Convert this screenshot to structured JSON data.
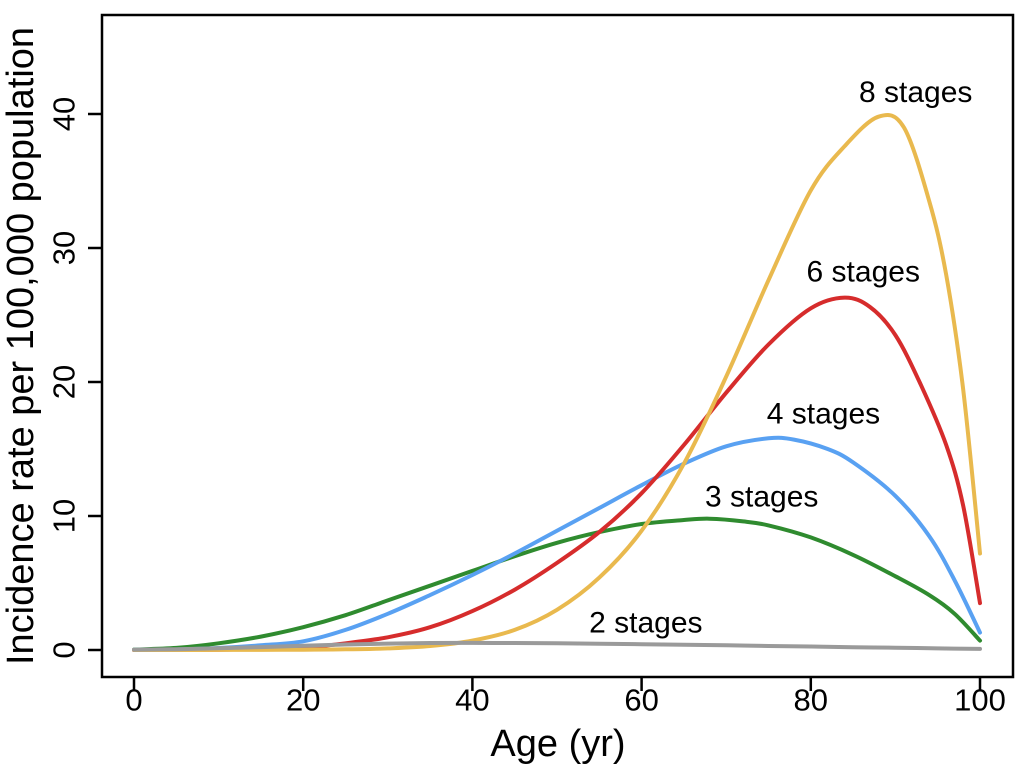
{
  "figure": {
    "background": "#ffffff",
    "axis_color": "#000000",
    "text_color": "#000000"
  },
  "chart_data": {
    "type": "line",
    "title": "",
    "xlabel": "Age (yr)",
    "ylabel": "Incidence rate per 100,000 population",
    "xlim": [
      0,
      100
    ],
    "ylim": [
      0,
      40
    ],
    "x_ticks": [
      0,
      20,
      40,
      60,
      80,
      100
    ],
    "y_ticks": [
      0,
      10,
      20,
      30,
      40
    ],
    "grid": false,
    "legend_position": "inline-labels",
    "series": [
      {
        "name": "3 stages",
        "color": "#2F8B2F",
        "peak": {
          "age": 67,
          "value": 9.8
        },
        "label_at": {
          "age": 74.2,
          "value": 11.4
        },
        "points": [
          [
            0,
            0.03
          ],
          [
            5,
            0.16
          ],
          [
            10,
            0.5
          ],
          [
            15,
            1.0
          ],
          [
            20,
            1.7
          ],
          [
            25,
            2.6
          ],
          [
            30,
            3.7
          ],
          [
            35,
            4.8
          ],
          [
            40,
            5.9
          ],
          [
            45,
            7.0
          ],
          [
            50,
            8.0
          ],
          [
            55,
            8.8
          ],
          [
            60,
            9.4
          ],
          [
            65,
            9.7
          ],
          [
            68,
            9.8
          ],
          [
            72,
            9.6
          ],
          [
            75,
            9.3
          ],
          [
            80,
            8.4
          ],
          [
            85,
            7.1
          ],
          [
            90,
            5.5
          ],
          [
            94,
            4.1
          ],
          [
            97,
            2.7
          ],
          [
            100,
            0.7
          ]
        ]
      },
      {
        "name": "4 stages",
        "color": "#59A1F2",
        "peak": {
          "age": 76,
          "value": 15.8
        },
        "label_at": {
          "age": 81.5,
          "value": 17.6
        },
        "points": [
          [
            0,
            0.01
          ],
          [
            5,
            0.04
          ],
          [
            10,
            0.15
          ],
          [
            15,
            0.35
          ],
          [
            20,
            0.65
          ],
          [
            25,
            1.5
          ],
          [
            30,
            2.7
          ],
          [
            35,
            4.1
          ],
          [
            40,
            5.6
          ],
          [
            45,
            7.2
          ],
          [
            50,
            8.9
          ],
          [
            55,
            10.6
          ],
          [
            60,
            12.3
          ],
          [
            65,
            13.9
          ],
          [
            70,
            15.2
          ],
          [
            75,
            15.8
          ],
          [
            78,
            15.7
          ],
          [
            82,
            15.0
          ],
          [
            85,
            14.0
          ],
          [
            90,
            11.5
          ],
          [
            94,
            8.5
          ],
          [
            97,
            5.2
          ],
          [
            100,
            1.3
          ]
        ]
      },
      {
        "name": "6 stages",
        "color": "#D62C2C",
        "peak": {
          "age": 84,
          "value": 26.3
        },
        "label_at": {
          "age": 86.2,
          "value": 28.2
        },
        "points": [
          [
            0,
            0.0
          ],
          [
            5,
            0.0
          ],
          [
            10,
            0.02
          ],
          [
            15,
            0.07
          ],
          [
            20,
            0.18
          ],
          [
            25,
            0.5
          ],
          [
            30,
            0.95
          ],
          [
            35,
            1.7
          ],
          [
            40,
            2.9
          ],
          [
            45,
            4.5
          ],
          [
            50,
            6.5
          ],
          [
            55,
            8.8
          ],
          [
            60,
            11.7
          ],
          [
            65,
            15.3
          ],
          [
            70,
            19.2
          ],
          [
            75,
            22.8
          ],
          [
            80,
            25.5
          ],
          [
            84,
            26.3
          ],
          [
            87,
            25.6
          ],
          [
            90,
            23.5
          ],
          [
            93,
            19.8
          ],
          [
            96,
            15.3
          ],
          [
            98,
            10.8
          ],
          [
            100,
            3.5
          ]
        ]
      },
      {
        "name": "8 stages",
        "color": "#E9B94E",
        "peak": {
          "age": 88,
          "value": 39.8
        },
        "label_at": {
          "age": 92.4,
          "value": 41.6
        },
        "points": [
          [
            0,
            0.0
          ],
          [
            5,
            0.0
          ],
          [
            10,
            0.01
          ],
          [
            15,
            0.01
          ],
          [
            20,
            0.02
          ],
          [
            25,
            0.05
          ],
          [
            30,
            0.12
          ],
          [
            35,
            0.3
          ],
          [
            40,
            0.7
          ],
          [
            45,
            1.5
          ],
          [
            50,
            3.0
          ],
          [
            55,
            5.4
          ],
          [
            60,
            8.9
          ],
          [
            65,
            13.9
          ],
          [
            70,
            20.4
          ],
          [
            75,
            27.6
          ],
          [
            80,
            34.3
          ],
          [
            84,
            37.6
          ],
          [
            88,
            39.8
          ],
          [
            91,
            39.0
          ],
          [
            94,
            33.5
          ],
          [
            96,
            28.0
          ],
          [
            98,
            19.5
          ],
          [
            100,
            7.2
          ]
        ]
      },
      {
        "name": "2 stages",
        "color": "#9A9A9A",
        "peak": {
          "age": 40,
          "value": 0.5
        },
        "label_at": {
          "age": 60.5,
          "value": 2.0
        },
        "points": [
          [
            0,
            0.02
          ],
          [
            5,
            0.06
          ],
          [
            10,
            0.13
          ],
          [
            15,
            0.22
          ],
          [
            20,
            0.32
          ],
          [
            25,
            0.41
          ],
          [
            30,
            0.48
          ],
          [
            35,
            0.52
          ],
          [
            40,
            0.53
          ],
          [
            45,
            0.52
          ],
          [
            50,
            0.5
          ],
          [
            55,
            0.47
          ],
          [
            60,
            0.43
          ],
          [
            65,
            0.39
          ],
          [
            70,
            0.35
          ],
          [
            75,
            0.3
          ],
          [
            80,
            0.26
          ],
          [
            85,
            0.21
          ],
          [
            90,
            0.17
          ],
          [
            95,
            0.12
          ],
          [
            100,
            0.08
          ]
        ]
      }
    ]
  }
}
